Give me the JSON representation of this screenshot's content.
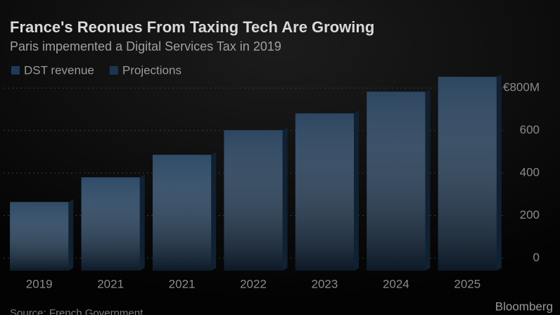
{
  "chart_data": {
    "type": "bar",
    "title": "France's Reonues From Taxing Tech Are Growing",
    "subtitle": "Paris impemented a Digital Services Tax in 2019",
    "source": "Source: French Government",
    "brand": "Bloomberg",
    "categories": [
      "2019",
      "2021",
      "2021",
      "2022",
      "2023",
      "2024",
      "2025"
    ],
    "series": [
      {
        "name": "DST revenue",
        "color": "#1d3b5a",
        "values": [
          264,
          380,
          486,
          null,
          null,
          null,
          null
        ]
      },
      {
        "name": "Projections",
        "color": "#1b3653",
        "values": [
          null,
          null,
          null,
          602,
          681,
          783,
          853
        ]
      }
    ],
    "ylim": [
      0,
      900
    ],
    "yticks": [
      0,
      200,
      400,
      600,
      {
        "value": 800,
        "label": "€800M"
      }
    ],
    "grid": true
  }
}
